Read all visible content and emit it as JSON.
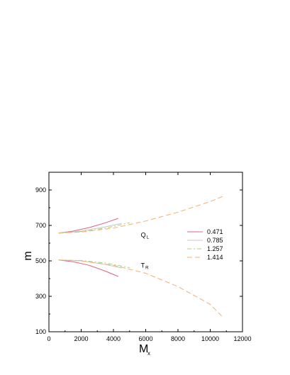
{
  "chart_data": {
    "type": "line",
    "xlabel": "M",
    "xlabel_sub": "x",
    "ylabel": "m",
    "xlim": [
      0,
      12000
    ],
    "ylim": [
      100,
      1000
    ],
    "xticks": [
      0,
      2000,
      4000,
      6000,
      8000,
      10000,
      12000
    ],
    "yticks": [
      100,
      300,
      500,
      700,
      900
    ],
    "grid": false,
    "legend_position": "right",
    "annotations": [
      {
        "text": "Q",
        "sub": "L",
        "x": 5700,
        "y": 635
      },
      {
        "text": "T",
        "sub": "R",
        "x": 5700,
        "y": 462
      }
    ],
    "series": [
      {
        "name": "0.471",
        "color": "#e0607e",
        "dash": "",
        "branches": [
          {
            "x": [
              600,
              1500,
              2500,
              3500,
              4300
            ],
            "y": [
              657,
              668,
              688,
              715,
              740
            ]
          },
          {
            "x": [
              600,
              1500,
              2500,
              3500,
              4300
            ],
            "y": [
              505,
              495,
              475,
              442,
              412
            ]
          }
        ]
      },
      {
        "name": "0.785",
        "color": "#c9c9c9",
        "dash": "",
        "branches": [
          {
            "x": [
              600,
              2000,
              3500,
              4500
            ],
            "y": [
              657,
              668,
              692,
              712
            ]
          },
          {
            "x": [
              600,
              2000,
              3500,
              4500
            ],
            "y": [
              505,
              500,
              480,
              460
            ]
          }
        ]
      },
      {
        "name": "1.257",
        "color": "#a6d17a",
        "dash": "6,3,2,3",
        "branches": [
          {
            "x": [
              600,
              2000,
              3500,
              5000
            ],
            "y": [
              657,
              665,
              685,
              715
            ]
          },
          {
            "x": [
              600,
              2000,
              3500,
              5000
            ],
            "y": [
              505,
              502,
              488,
              462
            ]
          }
        ]
      },
      {
        "name": "1.414",
        "color": "#f0b070",
        "dash": "7,4",
        "branches": [
          {
            "x": [
              600,
              2000,
              4000,
              6000,
              8000,
              10000,
              10800
            ],
            "y": [
              657,
              663,
              685,
              725,
              775,
              835,
              865
            ]
          },
          {
            "x": [
              600,
              2000,
              4000,
              6000,
              8000,
              10000,
              10800
            ],
            "y": [
              505,
              500,
              475,
              430,
              355,
              255,
              180
            ]
          }
        ]
      }
    ]
  }
}
